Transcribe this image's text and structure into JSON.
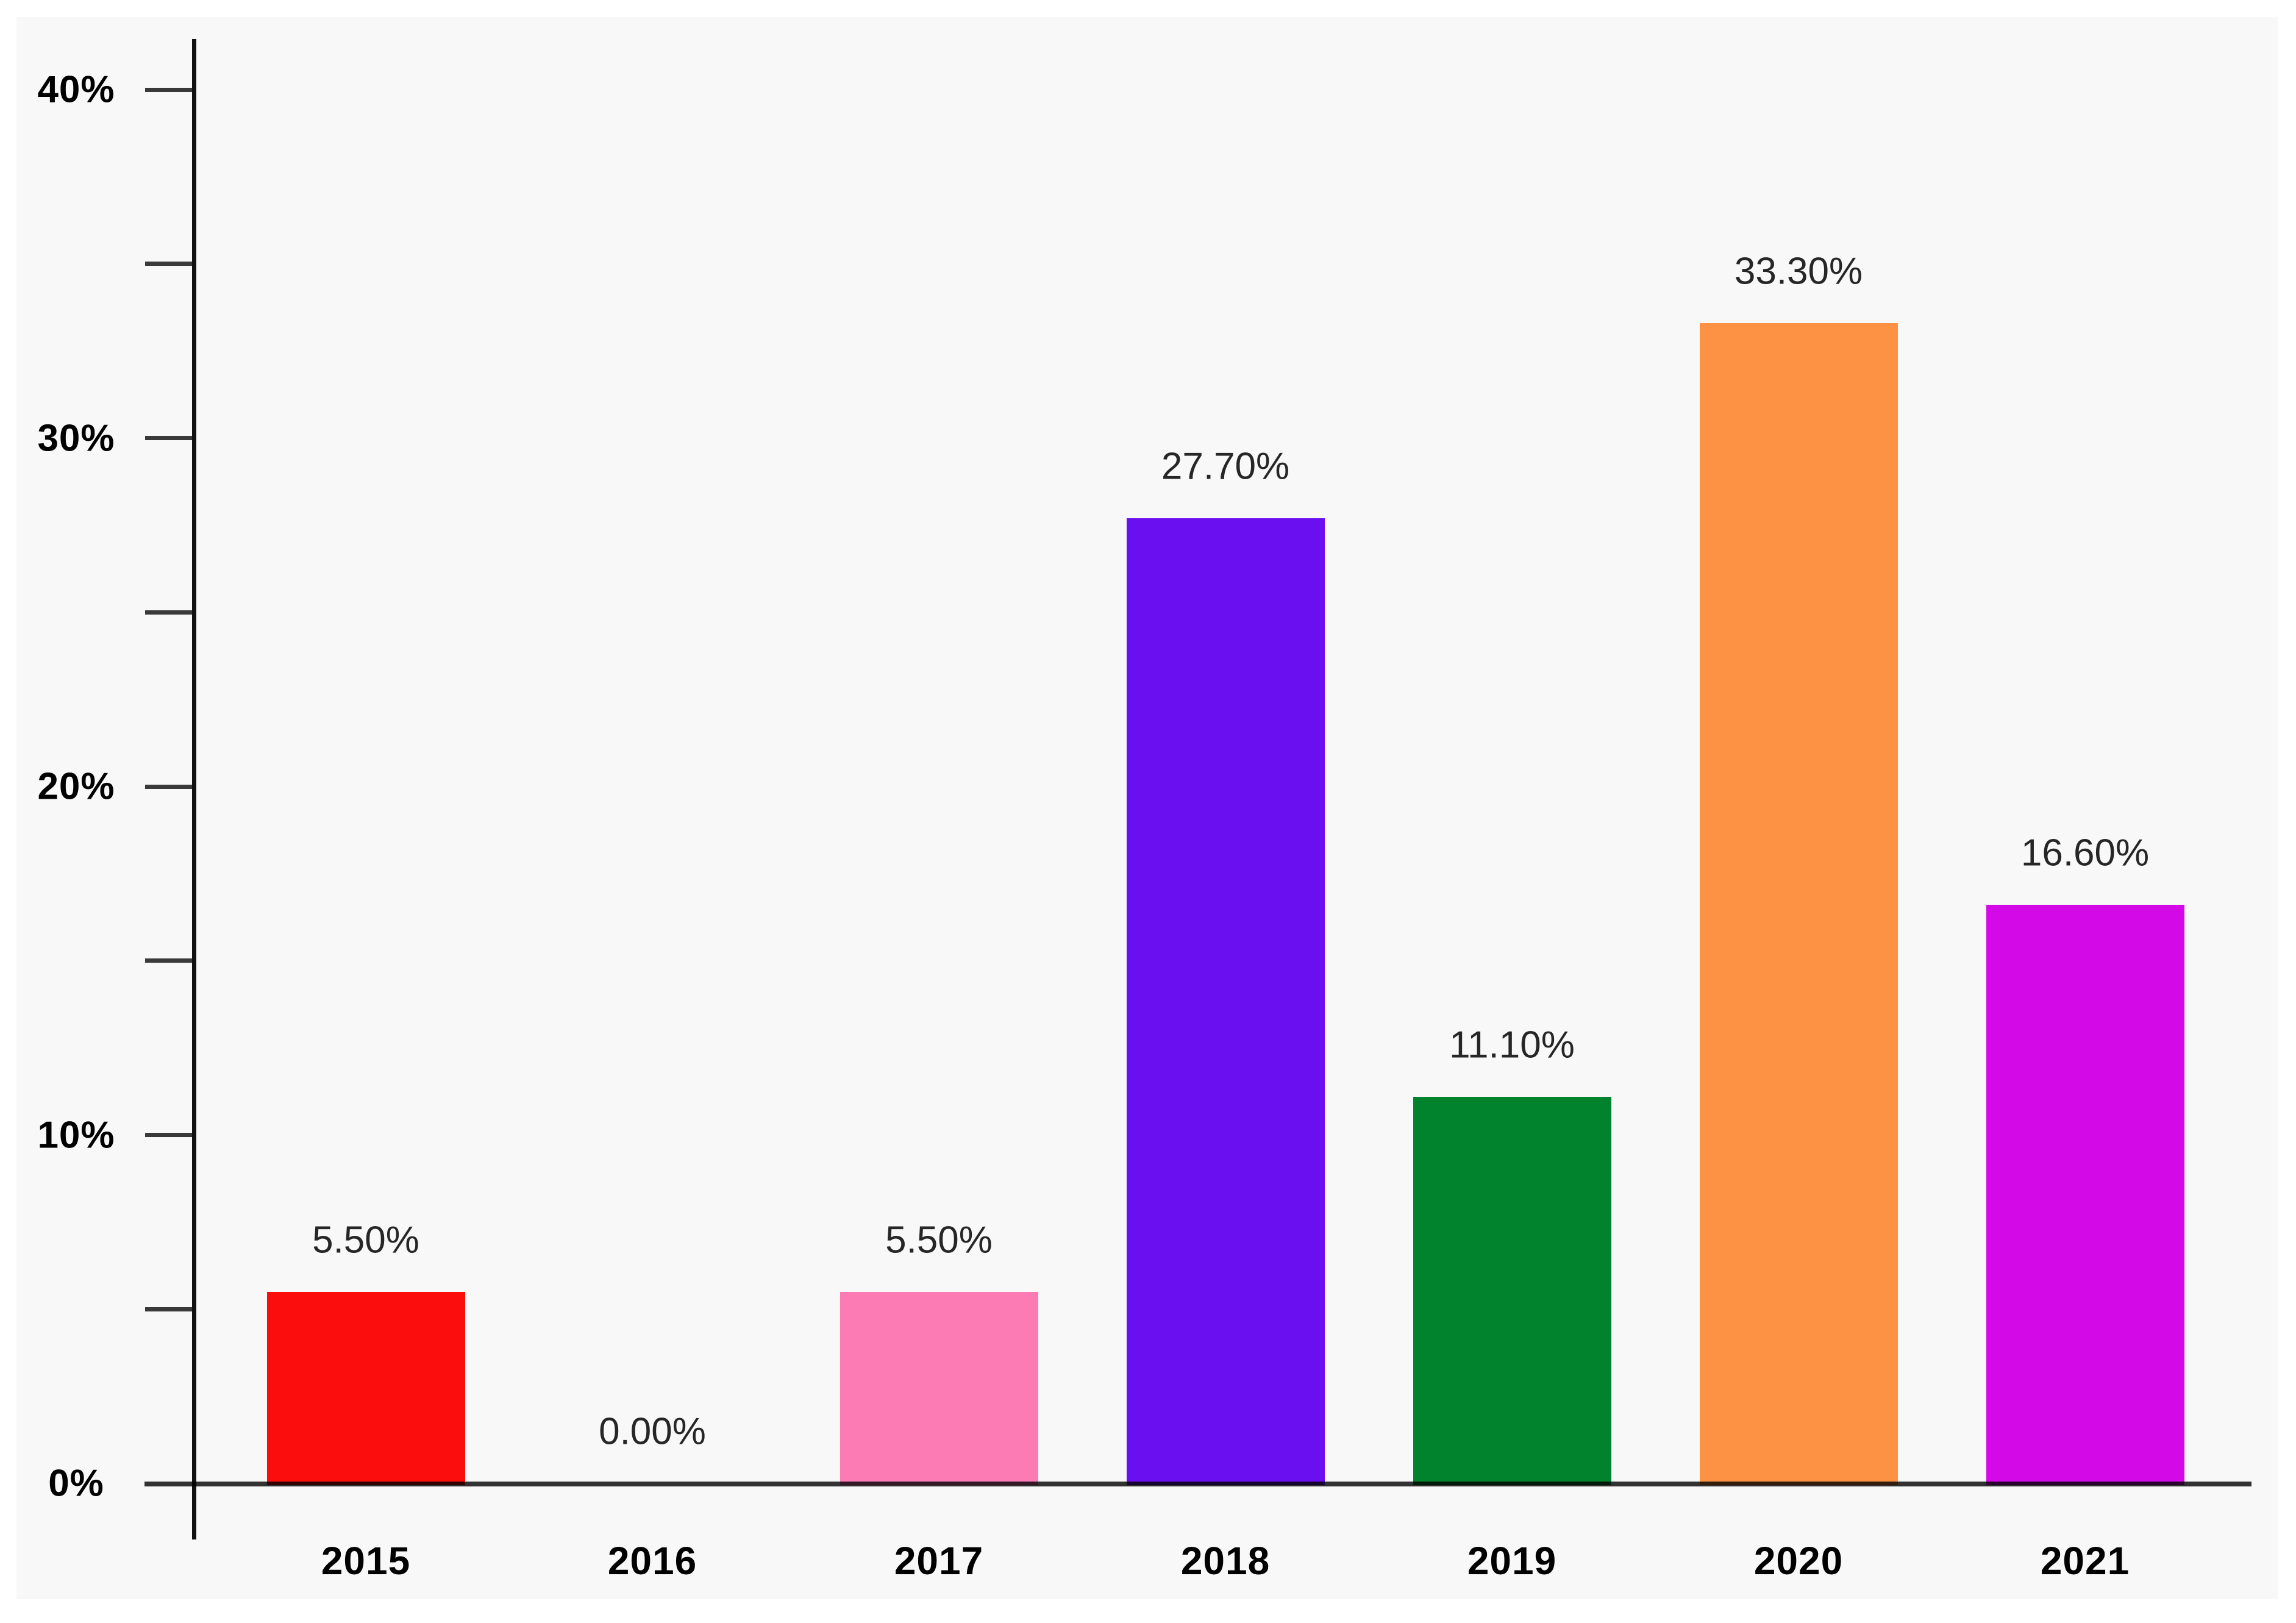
{
  "chart_data": {
    "type": "bar",
    "title": "",
    "xlabel": "",
    "ylabel": "",
    "categories": [
      "2015",
      "2016",
      "2017",
      "2018",
      "2019",
      "2020",
      "2021"
    ],
    "values": [
      5.5,
      0,
      5.5,
      27.7,
      11.1,
      33.3,
      16.6
    ],
    "value_labels": [
      "5.50%",
      "0.00%",
      "5.50%",
      "27.70%",
      "11.10%",
      "33.30%",
      "16.60%"
    ],
    "bar_colors": [
      "#fc0d0d",
      null,
      "#fd7bb5",
      "#6a0ff0",
      "#01832d",
      "#fd9245",
      "#d309e8"
    ],
    "ylim": [
      0,
      41.5
    ],
    "y_axis": {
      "ticks": [
        {
          "value": 0,
          "label": "0%"
        },
        {
          "value": 5,
          "label": ""
        },
        {
          "value": 10,
          "label": "10%"
        },
        {
          "value": 15,
          "label": ""
        },
        {
          "value": 20,
          "label": "20%"
        },
        {
          "value": 25,
          "label": ""
        },
        {
          "value": 30,
          "label": "30%"
        },
        {
          "value": 35,
          "label": ""
        },
        {
          "value": 40,
          "label": "40%"
        }
      ]
    },
    "grid": false,
    "legend": false,
    "colors": {
      "plot_background": "#f8f8f8",
      "page_background": "#ffffff",
      "x_axis_line": "#333333",
      "y_axis_line": "#111111",
      "axis_tick": "#3a3a3a",
      "tick_label": "#000000",
      "value_label": "#262626"
    }
  }
}
